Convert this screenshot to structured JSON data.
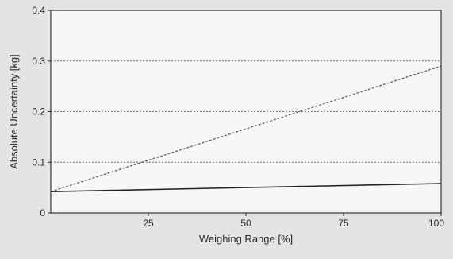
{
  "chart_data": {
    "type": "line",
    "title": "",
    "xlabel": "Weighing Range [%]",
    "ylabel": "Absolute Uncertainty [kg]",
    "xlim": [
      0,
      100
    ],
    "ylim": [
      0,
      0.4
    ],
    "x_ticks": [
      25,
      50,
      75,
      100
    ],
    "x_tick_labels": [
      "25",
      "50",
      "75",
      "100"
    ],
    "y_ticks": [
      0,
      0.1,
      0.2,
      0.3,
      0.4
    ],
    "y_tick_labels": [
      "0",
      "0.1",
      "0.2",
      "0.3",
      "0.4"
    ],
    "grid": "horizontal dotted",
    "legend": "none",
    "series": [
      {
        "x": [
          0,
          100
        ],
        "y": [
          0.042,
          0.29
        ],
        "style": "dashed",
        "color": "#555555"
      },
      {
        "x": [
          0,
          100
        ],
        "y": [
          0.042,
          0.058
        ],
        "style": "solid",
        "color": "#222222"
      }
    ]
  },
  "colors": {
    "background": "#e4e4e4",
    "plot_area": "#f7f7f7",
    "grid": "#777777",
    "axis": "#333333"
  }
}
